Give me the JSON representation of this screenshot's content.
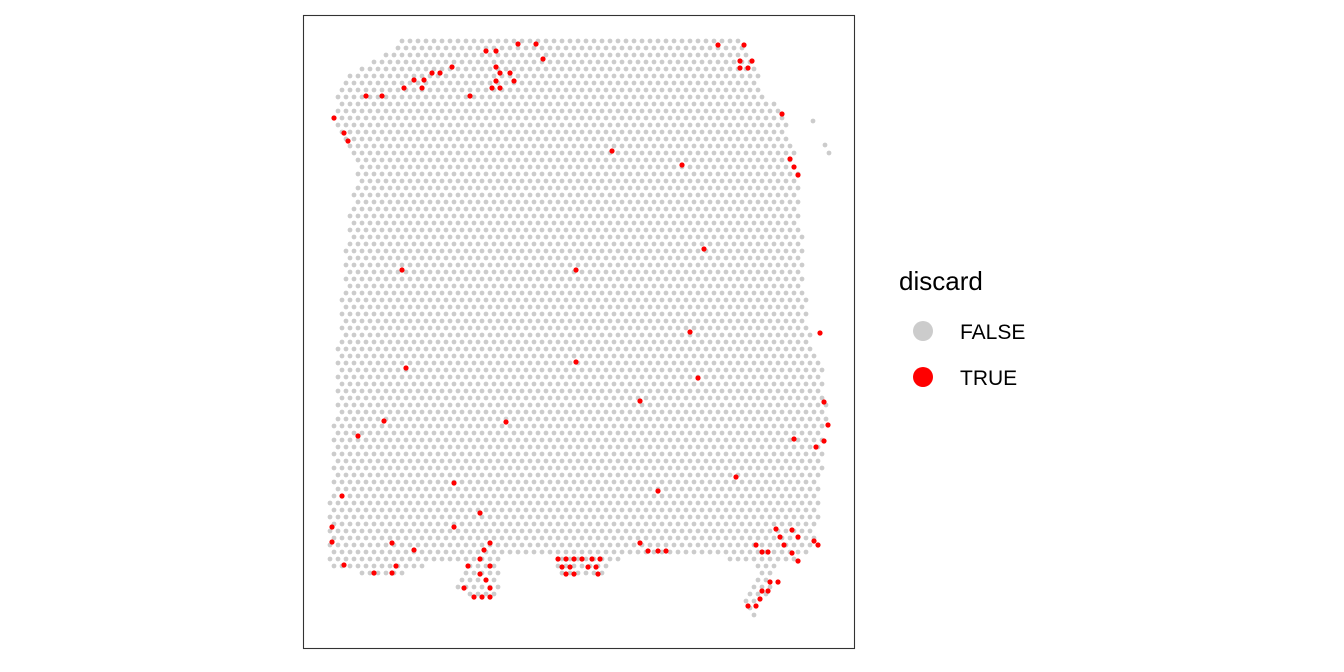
{
  "chart_data": {
    "type": "scatter",
    "title": "",
    "xlabel": "",
    "ylabel": "",
    "axes_visible": false,
    "grid": false,
    "panel_border": true,
    "legend": {
      "title": "discard",
      "placement": "right",
      "entries": [
        {
          "label": "FALSE",
          "color": "#cccccc"
        },
        {
          "label": "TRUE",
          "color": "#ff0000"
        }
      ]
    },
    "spot_array": {
      "row_spacing": 1,
      "col_spacing": 1,
      "tissue_outline": [
        [
          396,
          41
        ],
        [
          412,
          41
        ],
        [
          745,
          41
        ],
        [
          757,
          64
        ],
        [
          765,
          96
        ],
        [
          783,
          111
        ],
        [
          800,
          170
        ],
        [
          804,
          280
        ],
        [
          812,
          340
        ],
        [
          822,
          360
        ],
        [
          828,
          420
        ],
        [
          824,
          446
        ],
        [
          818,
          530
        ],
        [
          808,
          552
        ],
        [
          790,
          566
        ],
        [
          776,
          566
        ],
        [
          772,
          586
        ],
        [
          758,
          606
        ],
        [
          752,
          621
        ],
        [
          742,
          606
        ],
        [
          760,
          568
        ],
        [
          700,
          552
        ],
        [
          612,
          560
        ],
        [
          604,
          576
        ],
        [
          556,
          576
        ],
        [
          556,
          552
        ],
        [
          500,
          556
        ],
        [
          500,
          597
        ],
        [
          472,
          597
        ],
        [
          456,
          586
        ],
        [
          464,
          566
        ],
        [
          440,
          560
        ],
        [
          400,
          576
        ],
        [
          368,
          576
        ],
        [
          330,
          566
        ],
        [
          326,
          530
        ],
        [
          332,
          470
        ],
        [
          336,
          360
        ],
        [
          346,
          240
        ],
        [
          356,
          170
        ],
        [
          346,
          140
        ],
        [
          332,
          118
        ],
        [
          340,
          90
        ],
        [
          352,
          70
        ],
        [
          380,
          58
        ],
        [
          392,
          50
        ]
      ],
      "extra_isolated_spots": [
        [
          813,
          121
        ],
        [
          825,
          145
        ],
        [
          829,
          153
        ]
      ]
    },
    "series": [
      {
        "name": "TRUE",
        "color": "#ff0000",
        "points": [
          [
            518,
            44
          ],
          [
            536,
            44
          ],
          [
            718,
            45
          ],
          [
            744,
            45
          ],
          [
            486,
            51
          ],
          [
            496,
            51
          ],
          [
            543,
            59
          ],
          [
            740,
            61
          ],
          [
            752,
            61
          ],
          [
            452,
            67
          ],
          [
            496,
            67
          ],
          [
            740,
            68
          ],
          [
            748,
            68
          ],
          [
            432,
            73
          ],
          [
            440,
            73
          ],
          [
            500,
            73
          ],
          [
            510,
            73
          ],
          [
            414,
            80
          ],
          [
            424,
            80
          ],
          [
            496,
            81
          ],
          [
            514,
            81
          ],
          [
            404,
            88
          ],
          [
            422,
            88
          ],
          [
            492,
            88
          ],
          [
            500,
            88
          ],
          [
            366,
            96
          ],
          [
            382,
            96
          ],
          [
            470,
            96
          ],
          [
            334,
            118
          ],
          [
            782,
            114
          ],
          [
            344,
            133
          ],
          [
            348,
            141
          ],
          [
            612,
            151
          ],
          [
            682,
            165
          ],
          [
            790,
            159
          ],
          [
            794,
            167
          ],
          [
            798,
            175
          ],
          [
            704,
            249
          ],
          [
            402,
            270
          ],
          [
            576,
            270
          ],
          [
            690,
            332
          ],
          [
            820,
            333
          ],
          [
            576,
            362
          ],
          [
            406,
            368
          ],
          [
            698,
            378
          ],
          [
            640,
            401
          ],
          [
            824,
            402
          ],
          [
            384,
            421
          ],
          [
            506,
            422
          ],
          [
            828,
            425
          ],
          [
            358,
            436
          ],
          [
            794,
            439
          ],
          [
            824,
            441
          ],
          [
            816,
            447
          ],
          [
            736,
            477
          ],
          [
            454,
            483
          ],
          [
            658,
            491
          ],
          [
            342,
            496
          ],
          [
            480,
            513
          ],
          [
            332,
            527
          ],
          [
            454,
            527
          ],
          [
            776,
            529
          ],
          [
            792,
            530
          ],
          [
            780,
            537
          ],
          [
            798,
            537
          ],
          [
            332,
            542
          ],
          [
            392,
            543
          ],
          [
            490,
            543
          ],
          [
            640,
            543
          ],
          [
            756,
            545
          ],
          [
            784,
            545
          ],
          [
            814,
            541
          ],
          [
            818,
            545
          ],
          [
            414,
            550
          ],
          [
            484,
            550
          ],
          [
            648,
            551
          ],
          [
            658,
            551
          ],
          [
            666,
            551
          ],
          [
            762,
            552
          ],
          [
            768,
            552
          ],
          [
            792,
            553
          ],
          [
            480,
            559
          ],
          [
            558,
            559
          ],
          [
            566,
            559
          ],
          [
            574,
            559
          ],
          [
            582,
            559
          ],
          [
            592,
            559
          ],
          [
            600,
            559
          ],
          [
            798,
            561
          ],
          [
            344,
            565
          ],
          [
            396,
            566
          ],
          [
            468,
            566
          ],
          [
            490,
            566
          ],
          [
            562,
            567
          ],
          [
            570,
            567
          ],
          [
            588,
            567
          ],
          [
            596,
            567
          ],
          [
            374,
            573
          ],
          [
            392,
            573
          ],
          [
            566,
            574
          ],
          [
            574,
            574
          ],
          [
            598,
            574
          ],
          [
            480,
            574
          ],
          [
            486,
            580
          ],
          [
            770,
            582
          ],
          [
            778,
            582
          ],
          [
            464,
            588
          ],
          [
            490,
            588
          ],
          [
            762,
            591
          ],
          [
            768,
            591
          ],
          [
            474,
            597
          ],
          [
            482,
            597
          ],
          [
            490,
            597
          ],
          [
            760,
            599
          ],
          [
            748,
            606
          ],
          [
            756,
            606
          ]
        ]
      },
      {
        "name": "FALSE",
        "color": "#cccccc",
        "points": "all remaining spots inside the tissue region"
      }
    ]
  }
}
